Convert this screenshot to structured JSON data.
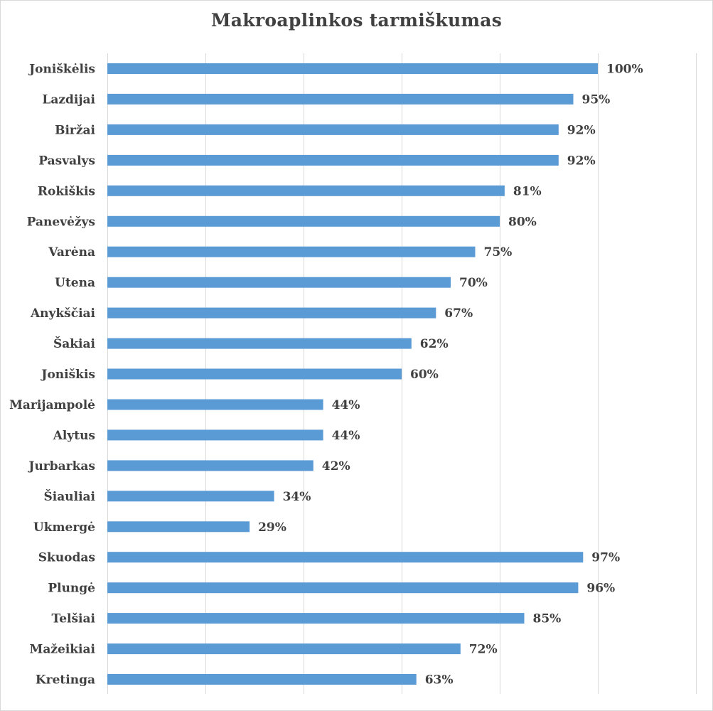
{
  "chart_data": {
    "type": "bar",
    "orientation": "horizontal",
    "title": "Makroaplinkos tarmiškumas",
    "xlabel": "",
    "ylabel": "",
    "xlim": [
      0,
      120
    ],
    "grid": true,
    "bar_color": "#5b9bd5",
    "grid_color": "#d9d9d9",
    "text_color": "#404040",
    "categories": [
      "Joniškėlis",
      "Lazdijai",
      "Biržai",
      "Pasvalys",
      "Rokiškis",
      "Panevėžys",
      "Varėna",
      "Utena",
      "Anykščiai",
      "Šakiai",
      "Joniškis",
      "Marijampolė",
      "Alytus",
      "Jurbarkas",
      "Šiauliai",
      "Ukmergė",
      "Skuodas",
      "Plungė",
      "Telšiai",
      "Mažeikiai",
      "Kretinga"
    ],
    "values": [
      100,
      95,
      92,
      92,
      81,
      80,
      75,
      70,
      67,
      62,
      60,
      44,
      44,
      42,
      34,
      29,
      97,
      96,
      85,
      72,
      63
    ],
    "value_labels": [
      "100%",
      "95%",
      "92%",
      "92%",
      "81%",
      "80%",
      "75%",
      "70%",
      "67%",
      "62%",
      "60%",
      "44%",
      "44%",
      "42%",
      "34%",
      "29%",
      "97%",
      "96%",
      "85%",
      "72%",
      "63%"
    ]
  }
}
